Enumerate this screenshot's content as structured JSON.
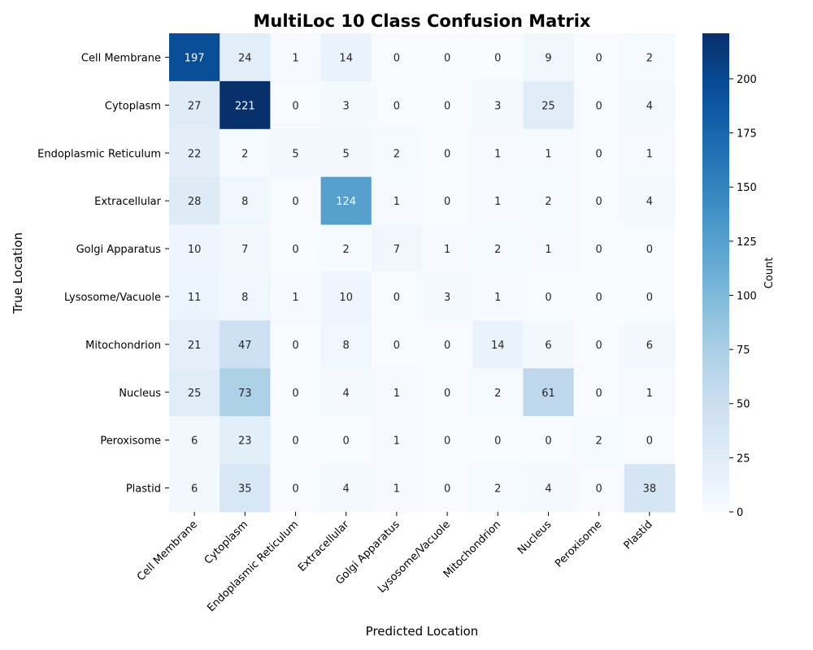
{
  "chart_data": {
    "type": "heatmap",
    "title": "MultiLoc 10 Class Confusion Matrix",
    "xlabel": "Predicted Location",
    "ylabel": "True Location",
    "row_labels": [
      "Cell Membrane",
      "Cytoplasm",
      "Endoplasmic Reticulum",
      "Extracellular",
      "Golgi Apparatus",
      "Lysosome/Vacuole",
      "Mitochondrion",
      "Nucleus",
      "Peroxisome",
      "Plastid"
    ],
    "col_labels": [
      "Cell Membrane",
      "Cytoplasm",
      "Endoplasmic Reticulum",
      "Extracellular",
      "Golgi Apparatus",
      "Lysosome/Vacuole",
      "Mitochondrion",
      "Nucleus",
      "Peroxisome",
      "Plastid"
    ],
    "values": [
      [
        197,
        24,
        1,
        14,
        0,
        0,
        0,
        9,
        0,
        2
      ],
      [
        27,
        221,
        0,
        3,
        0,
        0,
        3,
        25,
        0,
        4
      ],
      [
        22,
        2,
        5,
        5,
        2,
        0,
        1,
        1,
        0,
        1
      ],
      [
        28,
        8,
        0,
        124,
        1,
        0,
        1,
        2,
        0,
        4
      ],
      [
        10,
        7,
        0,
        2,
        7,
        1,
        2,
        1,
        0,
        0
      ],
      [
        11,
        8,
        1,
        10,
        0,
        3,
        1,
        0,
        0,
        0
      ],
      [
        21,
        47,
        0,
        8,
        0,
        0,
        14,
        6,
        0,
        6
      ],
      [
        25,
        73,
        0,
        4,
        1,
        0,
        2,
        61,
        0,
        1
      ],
      [
        6,
        23,
        0,
        0,
        1,
        0,
        0,
        0,
        2,
        0
      ],
      [
        6,
        35,
        0,
        4,
        1,
        0,
        2,
        4,
        0,
        38
      ]
    ],
    "colorbar": {
      "label": "Count",
      "ticks": [
        0,
        25,
        50,
        75,
        100,
        125,
        150,
        175,
        200
      ],
      "range": [
        0,
        221
      ],
      "colormap": "Blues"
    }
  }
}
